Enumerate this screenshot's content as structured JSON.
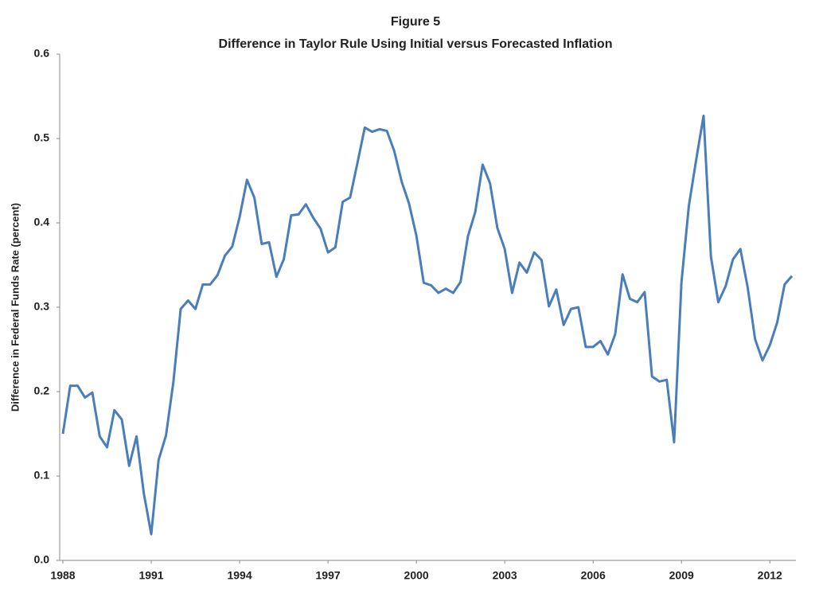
{
  "chart_data": {
    "type": "line",
    "title": "Figure 5",
    "subtitle": "Difference in Taylor Rule Using Initial versus Forecasted Inflation",
    "y_label": "Difference in Federal Funds Rate (percent)",
    "categories": [
      "1988",
      null,
      null,
      null,
      null,
      null,
      null,
      null,
      null,
      null,
      null,
      null,
      "1991",
      null,
      null,
      null,
      null,
      null,
      null,
      null,
      null,
      null,
      null,
      null,
      "1994",
      null,
      null,
      null,
      null,
      null,
      null,
      null,
      null,
      null,
      null,
      null,
      "1997",
      null,
      null,
      null,
      null,
      null,
      null,
      null,
      null,
      null,
      null,
      null,
      "2000",
      null,
      null,
      null,
      null,
      null,
      null,
      null,
      null,
      null,
      null,
      null,
      "2003",
      null,
      null,
      null,
      null,
      null,
      null,
      null,
      null,
      null,
      null,
      null,
      "2006",
      null,
      null,
      null,
      null,
      null,
      null,
      null,
      null,
      null,
      null,
      null,
      "2009",
      null,
      null,
      null,
      null,
      null,
      null,
      null,
      null,
      null,
      null,
      null,
      "2012",
      null,
      null,
      null
    ],
    "series": [
      {
        "color": "#4a7ebb",
        "values": [
          0.15,
          0.207,
          0.207,
          0.193,
          0.199,
          0.147,
          0.134,
          0.178,
          0.167,
          0.112,
          0.147,
          0.079,
          0.031,
          0.119,
          0.148,
          0.211,
          0.298,
          0.308,
          0.298,
          0.327,
          0.327,
          0.338,
          0.361,
          0.372,
          0.407,
          0.451,
          0.43,
          0.375,
          0.377,
          0.336,
          0.357,
          0.409,
          0.41,
          0.422,
          0.406,
          0.393,
          0.365,
          0.371,
          0.425,
          0.43,
          0.471,
          0.513,
          0.508,
          0.511,
          0.509,
          0.485,
          0.449,
          0.423,
          0.385,
          0.329,
          0.326,
          0.317,
          0.322,
          0.317,
          0.33,
          0.384,
          0.413,
          0.469,
          0.447,
          0.394,
          0.369,
          0.317,
          0.353,
          0.341,
          0.365,
          0.356,
          0.301,
          0.321,
          0.279,
          0.298,
          0.3,
          0.253,
          0.253,
          0.26,
          0.244,
          0.268,
          0.339,
          0.31,
          0.306,
          0.318,
          0.218,
          0.212,
          0.214,
          0.14,
          0.33,
          0.42,
          0.475,
          0.527,
          0.36,
          0.306,
          0.325,
          0.357,
          0.369,
          0.323,
          0.262,
          0.237,
          0.255,
          0.282,
          0.327,
          0.337
        ]
      }
    ],
    "ylim": [
      0,
      0.6
    ],
    "yticks": [
      {
        "value": 0,
        "label": "0.0"
      },
      0.1,
      0.2,
      0.3,
      0.4,
      0.5,
      0.6
    ],
    "grid": false
  }
}
